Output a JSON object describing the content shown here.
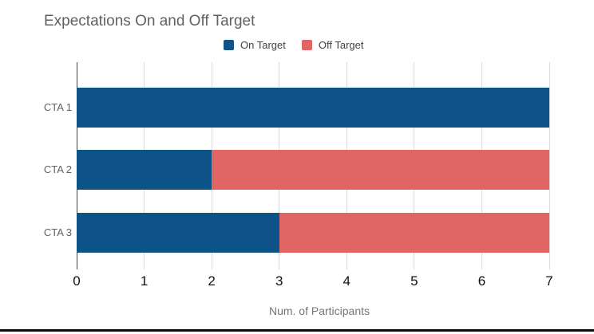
{
  "title": "Expectations On and Off Target",
  "chart_data": {
    "type": "bar",
    "orientation": "horizontal",
    "stacked": true,
    "title": "Expectations On and Off Target",
    "categories": [
      "CTA 1",
      "CTA 2",
      "CTA 3"
    ],
    "series": [
      {
        "name": "On Target",
        "color": "#0d5388",
        "values": [
          7,
          2,
          3
        ]
      },
      {
        "name": "Off Target",
        "color": "#e06666",
        "values": [
          0,
          5,
          4
        ]
      }
    ],
    "xlabel": "Num. of Participants",
    "ylabel": "",
    "xlim": [
      0,
      7
    ],
    "xticks": [
      0,
      1,
      2,
      3,
      4,
      5,
      6,
      7
    ],
    "grid": "vertical",
    "legend_position": "top"
  },
  "colors": {
    "on_target": "#0d5388",
    "off_target": "#e06666",
    "gridline": "#dcdcdc",
    "axis_line": "#424242",
    "title_text": "#616161",
    "category_text": "#616161",
    "tick_text": "#111111",
    "axis_label_text": "#757575",
    "legend_text": "#424242",
    "bottom_border": "#0c0c0c",
    "background": "#ffffff"
  }
}
